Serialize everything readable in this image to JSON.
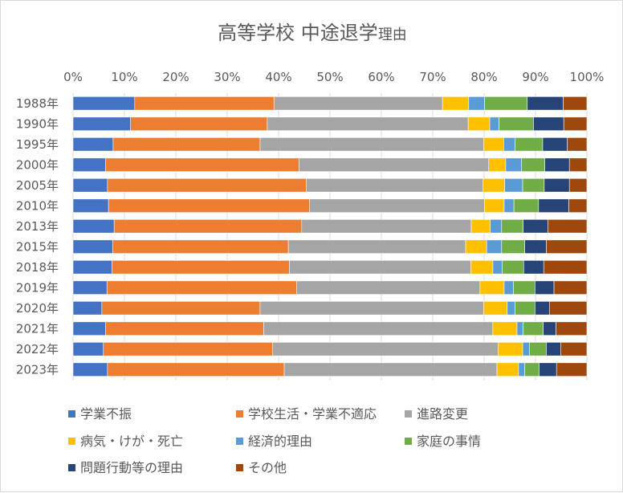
{
  "chart_data": {
    "type": "bar",
    "orientation": "horizontal",
    "stacked": "percent",
    "title": "高等学校 中途退学",
    "title_suffix": "理由",
    "xlabel": "",
    "ylabel": "",
    "xlim": [
      0,
      100
    ],
    "x_ticks": [
      "0%",
      "10%",
      "20%",
      "30%",
      "40%",
      "50%",
      "60%",
      "70%",
      "80%",
      "90%",
      "100%"
    ],
    "x_axis_position": "top",
    "grid": true,
    "legend_position": "bottom",
    "categories": [
      "1988年",
      "1990年",
      "1995年",
      "2000年",
      "2005年",
      "2010年",
      "2013年",
      "2015年",
      "2018年",
      "2019年",
      "2020年",
      "2021年",
      "2022年",
      "2023年"
    ],
    "series": [
      {
        "name": "学業不振",
        "color": "#4472c4",
        "values": [
          12.0,
          11.2,
          7.8,
          6.3,
          6.7,
          6.9,
          8.0,
          7.7,
          7.6,
          6.6,
          5.6,
          6.3,
          5.9,
          6.7
        ]
      },
      {
        "name": "学校生活・学業不適応",
        "color": "#ed7d31",
        "values": [
          27.1,
          26.6,
          28.6,
          37.7,
          38.7,
          39.1,
          36.5,
          34.2,
          34.5,
          36.9,
          30.8,
          30.8,
          32.9,
          34.4
        ]
      },
      {
        "name": "進路変更",
        "color": "#a5a5a5",
        "values": [
          32.8,
          39.1,
          43.5,
          36.9,
          34.4,
          34.1,
          33.0,
          34.5,
          35.3,
          35.7,
          43.5,
          44.6,
          43.9,
          41.4
        ]
      },
      {
        "name": "病気・けが・死亡",
        "color": "#ffc000",
        "values": [
          5.1,
          4.2,
          3.9,
          3.3,
          4.2,
          3.8,
          3.7,
          4.1,
          4.3,
          4.7,
          4.6,
          4.7,
          4.8,
          4.2
        ]
      },
      {
        "name": "経済的理由",
        "color": "#5b9bd5",
        "values": [
          3.1,
          1.8,
          2.2,
          3.1,
          3.5,
          1.9,
          2.2,
          2.9,
          1.8,
          1.8,
          1.5,
          1.2,
          1.3,
          1.2
        ]
      },
      {
        "name": "家庭の事情",
        "color": "#70ad47",
        "values": [
          8.3,
          6.7,
          5.4,
          4.5,
          4.2,
          4.8,
          4.2,
          4.5,
          4.2,
          4.2,
          3.9,
          3.9,
          3.3,
          2.8
        ]
      },
      {
        "name": "問題行動等の理由",
        "color": "#264478",
        "values": [
          7.0,
          5.9,
          4.8,
          4.8,
          4.9,
          5.9,
          4.8,
          4.2,
          3.9,
          3.7,
          2.8,
          2.5,
          2.8,
          3.4
        ]
      },
      {
        "name": "その他",
        "color": "#9e480e",
        "values": [
          4.6,
          4.5,
          3.8,
          3.4,
          3.4,
          3.5,
          7.6,
          7.9,
          8.4,
          6.4,
          7.3,
          6.0,
          5.1,
          5.9
        ]
      }
    ]
  }
}
